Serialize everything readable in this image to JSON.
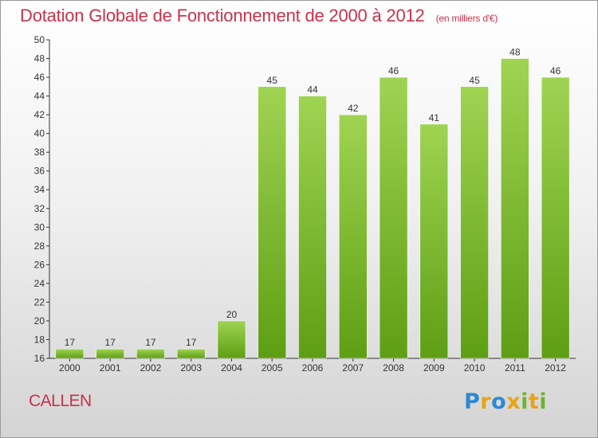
{
  "page": {
    "title": "Dotation Globale de Fonctionnement de 2000 à 2012",
    "subtitle": "(en milliers d'€)",
    "commune": "CALLEN",
    "logo": [
      "P",
      "r",
      "o",
      "x",
      "i",
      "t",
      "i"
    ],
    "logo_colors": [
      "#2e88d0",
      "#e8a415",
      "#2e88d0",
      "#e8a415",
      "#6cb52d",
      "#e8a415",
      "#6cb52d"
    ]
  },
  "chart_data": {
    "type": "bar",
    "title": "Dotation Globale de Fonctionnement de 2000 à 2012",
    "subtitle": "(en milliers d'€)",
    "xlabel": "",
    "ylabel": "",
    "categories": [
      "2000",
      "2001",
      "2002",
      "2003",
      "2004",
      "2005",
      "2006",
      "2007",
      "2008",
      "2009",
      "2010",
      "2011",
      "2012"
    ],
    "values": [
      17,
      17,
      17,
      17,
      20,
      45,
      44,
      42,
      46,
      41,
      45,
      48,
      46
    ],
    "ylim": [
      16,
      50
    ],
    "yticks": [
      16,
      18,
      20,
      22,
      24,
      26,
      28,
      30,
      32,
      34,
      36,
      38,
      40,
      42,
      44,
      46,
      48,
      50
    ],
    "grid": false,
    "legend": "none",
    "colors": {
      "bar_top": "#9fd452",
      "bar_bottom": "#5e9e14",
      "axis": "#333333"
    }
  }
}
